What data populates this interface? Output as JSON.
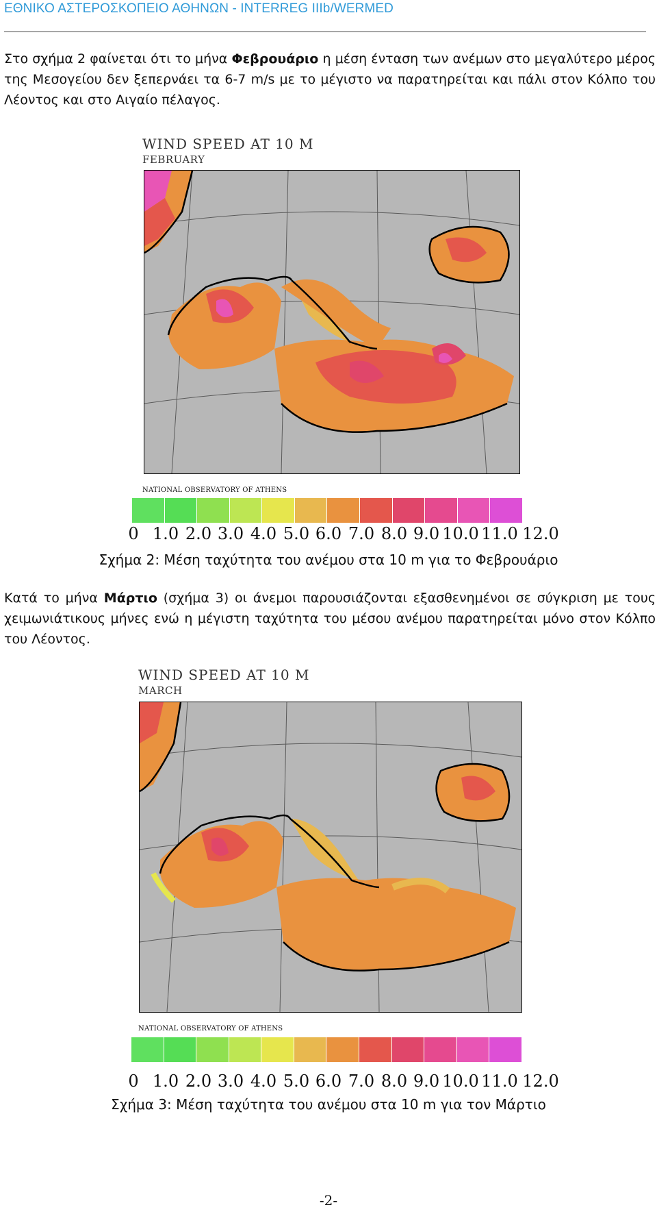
{
  "header": {
    "title": "ΕΘΝΙΚΟ ΑΣΤΕΡΟΣΚΟΠΕΙΟ ΑΘΗΝΩΝ - INTERREG IIIb/WERMED"
  },
  "paragraph1": {
    "pre": "Στο σχήμα 2 φαίνεται ότι το μήνα ",
    "bold": "Φεβρουάριο",
    "post": " η μέση ένταση των ανέμων στο μεγαλύτερο μέρος της Μεσογείου δεν ξεπερνάει τα 6-7 m/s με το μέγιστο να παρατηρείται και πάλι στον Κόλπο του Λέοντος και στο Αιγαίο πέλαγος."
  },
  "figure2": {
    "map_title": "WIND SPEED AT 10 M",
    "month": "FEBRUARY",
    "observatory": "NATIONAL OBSERVATORY OF ATHENS",
    "caption": "Σχήμα 2: Μέση ταχύτητα του ανέμου στα 10 m για το Φεβρουάριο"
  },
  "paragraph2": {
    "pre": "Κατά το μήνα ",
    "bold": "Μάρτιο",
    "post": " (σχήμα 3) οι άνεμοι παρουσιάζονται εξασθενημένοι σε σύγκριση με τους χειμωνιάτικους μήνες ενώ η μέγιστη ταχύτητα του μέσου ανέμου παρατηρείται μόνο στον Κόλπο του Λέοντος."
  },
  "figure3": {
    "map_title": "WIND SPEED AT 10 M",
    "month": "MARCH",
    "observatory": "NATIONAL OBSERVATORY OF ATHENS",
    "caption": "Σχήμα 3: Μέση ταχύτητα του ανέμου στα 10 m για τον Μάρτιο"
  },
  "colorbar": {
    "labels": [
      "0",
      "1.0",
      "2.0",
      "3.0",
      "4.0",
      "5.0",
      "6.0",
      "7.0",
      "8.0",
      "9.0",
      "10.0",
      "11.0",
      "12.0"
    ],
    "colors": [
      "#5fe05f",
      "#55dd55",
      "#8fe050",
      "#bde653",
      "#e6e64d",
      "#e8b84f",
      "#e9923f",
      "#e4574c",
      "#e0466a",
      "#e54a8f",
      "#e855b5",
      "#dd4fd6"
    ]
  },
  "page_number": "-2-"
}
